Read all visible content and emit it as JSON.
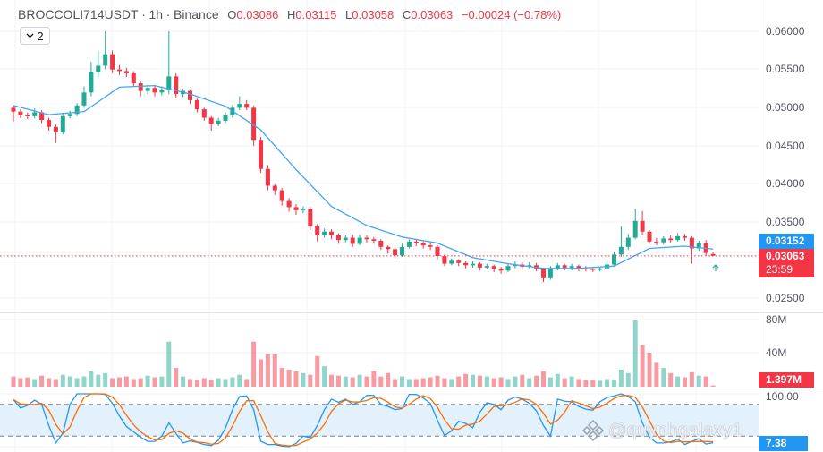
{
  "header": {
    "symbol": "BROCCOLI714USDT",
    "sep1": "·",
    "interval": "1h",
    "sep2": "·",
    "exchange": "Binance",
    "o_label": "O",
    "o_value": "0.03086",
    "h_label": "H",
    "h_value": "0.03115",
    "l_label": "L",
    "l_value": "0.03058",
    "c_label": "C",
    "c_value": "0.03063",
    "change": "−0.00024 (−0.78%)"
  },
  "indicators_toggle": {
    "icon": "chevron-down-icon",
    "count": "2"
  },
  "price_axis": {
    "ticks": [
      "0.06000",
      "0.05500",
      "0.05000",
      "0.04500",
      "0.04000",
      "0.03500",
      "0.02500"
    ],
    "ma_label": "0.03152",
    "last_price_label": "0.03063",
    "countdown": "23:59"
  },
  "volume_axis": {
    "ticks": [
      "80M",
      "40M"
    ],
    "last_label": "1.397M"
  },
  "stoch_axis": {
    "ticks": [
      "100.00"
    ],
    "last_label": "7.38"
  },
  "watermark": "@quynhgalaxy1",
  "colors": {
    "up": "#22ab94",
    "down": "#f23645",
    "ma": "#42a5f5",
    "k": "#2196f3",
    "d": "#ff6d00",
    "band": "#e3f1fd",
    "grid": "#f0f3fa"
  },
  "chart_data": [
    {
      "type": "candlestick",
      "title": "BROCCOLI714USDT · 1h · Binance",
      "ylim": [
        0.0245,
        0.06
      ],
      "grid": true,
      "open": [
        0.05,
        0.0495,
        0.049,
        0.0489,
        0.0494,
        0.0484,
        0.0475,
        0.0468,
        0.0489,
        0.0492,
        0.0503,
        0.052,
        0.0547,
        0.0555,
        0.057,
        0.055,
        0.0548,
        0.0545,
        0.0532,
        0.0522,
        0.0526,
        0.052,
        0.0523,
        0.0541,
        0.0518,
        0.0522,
        0.051,
        0.0498,
        0.0487,
        0.0479,
        0.0483,
        0.049,
        0.05,
        0.0505,
        0.05,
        0.0458,
        0.042,
        0.0398,
        0.0392,
        0.0378,
        0.037,
        0.0366,
        0.0368,
        0.0345,
        0.0333,
        0.0338,
        0.0333,
        0.0327,
        0.033,
        0.0322,
        0.033,
        0.0328,
        0.0326,
        0.0318,
        0.0315,
        0.0307,
        0.0318,
        0.0325,
        0.0323,
        0.032,
        0.0318,
        0.0306,
        0.0296,
        0.03,
        0.0297,
        0.0294,
        0.0296,
        0.0291,
        0.0293,
        0.0289,
        0.0287,
        0.0293,
        0.0295,
        0.0292,
        0.0294,
        0.0289,
        0.0277,
        0.029,
        0.0294,
        0.0291,
        0.0293,
        0.029,
        0.0289,
        0.0288,
        0.029,
        0.0295,
        0.0308,
        0.0318,
        0.033,
        0.0352,
        0.0338,
        0.0325,
        0.0324,
        0.0329,
        0.0327,
        0.0332,
        0.033,
        0.0316,
        0.0323,
        0.03086
      ],
      "high": [
        0.0503,
        0.0498,
        0.0494,
        0.0499,
        0.0497,
        0.0487,
        0.0478,
        0.0492,
        0.0496,
        0.0506,
        0.0528,
        0.056,
        0.0575,
        0.06,
        0.0575,
        0.0556,
        0.0552,
        0.0548,
        0.0534,
        0.053,
        0.053,
        0.0528,
        0.06,
        0.0545,
        0.0525,
        0.0524,
        0.0512,
        0.05,
        0.0489,
        0.0487,
        0.0494,
        0.0504,
        0.0515,
        0.051,
        0.0503,
        0.0462,
        0.0425,
        0.04,
        0.0395,
        0.0382,
        0.0374,
        0.0371,
        0.037,
        0.0348,
        0.0342,
        0.0341,
        0.0336,
        0.0333,
        0.0334,
        0.0334,
        0.0333,
        0.0331,
        0.0328,
        0.032,
        0.0318,
        0.0322,
        0.0328,
        0.0328,
        0.0325,
        0.0323,
        0.032,
        0.0308,
        0.0303,
        0.0302,
        0.0299,
        0.0299,
        0.0298,
        0.0296,
        0.0295,
        0.0292,
        0.0296,
        0.0299,
        0.0298,
        0.0298,
        0.0297,
        0.0291,
        0.0293,
        0.0297,
        0.0296,
        0.0296,
        0.0295,
        0.0293,
        0.0292,
        0.0292,
        0.0299,
        0.0312,
        0.0345,
        0.0335,
        0.0368,
        0.0365,
        0.034,
        0.033,
        0.0332,
        0.0333,
        0.0336,
        0.0335,
        0.0332,
        0.0326,
        0.0327,
        0.03115
      ],
      "low": [
        0.0482,
        0.0487,
        0.0485,
        0.0486,
        0.048,
        0.047,
        0.0454,
        0.0465,
        0.0486,
        0.0489,
        0.05,
        0.0515,
        0.054,
        0.055,
        0.0545,
        0.0543,
        0.054,
        0.0528,
        0.0515,
        0.0518,
        0.0515,
        0.0516,
        0.0518,
        0.0512,
        0.0514,
        0.0505,
        0.0494,
        0.0483,
        0.047,
        0.0476,
        0.048,
        0.0487,
        0.0497,
        0.0497,
        0.045,
        0.0415,
        0.0392,
        0.0386,
        0.0372,
        0.0364,
        0.036,
        0.0362,
        0.034,
        0.0325,
        0.033,
        0.0328,
        0.0322,
        0.0324,
        0.0318,
        0.032,
        0.0323,
        0.0322,
        0.0314,
        0.0309,
        0.0303,
        0.0305,
        0.0316,
        0.0319,
        0.0316,
        0.0314,
        0.0302,
        0.0293,
        0.0294,
        0.0293,
        0.029,
        0.0291,
        0.0287,
        0.0289,
        0.0285,
        0.0283,
        0.0285,
        0.029,
        0.0288,
        0.029,
        0.0286,
        0.0272,
        0.0275,
        0.0287,
        0.0287,
        0.0287,
        0.0286,
        0.0286,
        0.0285,
        0.0286,
        0.0288,
        0.0293,
        0.0305,
        0.0314,
        0.0328,
        0.0334,
        0.0322,
        0.032,
        0.0321,
        0.0323,
        0.0325,
        0.0326,
        0.0296,
        0.0313,
        0.0306,
        0.03058
      ],
      "close": [
        0.0495,
        0.049,
        0.0489,
        0.0494,
        0.0484,
        0.0475,
        0.0468,
        0.0489,
        0.0492,
        0.0503,
        0.052,
        0.0547,
        0.0555,
        0.057,
        0.055,
        0.0548,
        0.0545,
        0.0532,
        0.0522,
        0.0526,
        0.052,
        0.0523,
        0.0541,
        0.0518,
        0.0522,
        0.051,
        0.0498,
        0.0487,
        0.0479,
        0.0483,
        0.049,
        0.05,
        0.0505,
        0.05,
        0.0458,
        0.042,
        0.0398,
        0.0392,
        0.0378,
        0.037,
        0.0366,
        0.0368,
        0.0345,
        0.0333,
        0.0338,
        0.0333,
        0.0327,
        0.033,
        0.0322,
        0.033,
        0.0328,
        0.0326,
        0.0318,
        0.0315,
        0.0307,
        0.0318,
        0.0325,
        0.0323,
        0.032,
        0.0318,
        0.0306,
        0.0296,
        0.03,
        0.0297,
        0.0294,
        0.0296,
        0.0291,
        0.0293,
        0.0289,
        0.0287,
        0.0293,
        0.0295,
        0.0292,
        0.0294,
        0.0289,
        0.0277,
        0.029,
        0.0294,
        0.0291,
        0.0293,
        0.029,
        0.0289,
        0.0288,
        0.029,
        0.0295,
        0.0308,
        0.0318,
        0.033,
        0.0352,
        0.0338,
        0.0325,
        0.0324,
        0.0329,
        0.0327,
        0.0332,
        0.033,
        0.0316,
        0.0323,
        0.031,
        0.03063
      ],
      "ma_every_5": [
        0.0503,
        0.0491,
        0.0495,
        0.0527,
        0.0529,
        0.0518,
        0.0502,
        0.0471,
        0.0419,
        0.0371,
        0.0346,
        0.0331,
        0.0323,
        0.0304,
        0.0296,
        0.029,
        0.029,
        0.0293,
        0.0316,
        0.0319,
        0.03152
      ],
      "last_price": 0.03063
    },
    {
      "type": "bar",
      "name": "volume",
      "unit": "M",
      "ylim": [
        0,
        80
      ],
      "values": [
        12,
        10,
        11,
        9,
        13,
        10,
        9,
        14,
        12,
        10,
        12,
        18,
        14,
        16,
        10,
        11,
        12,
        9,
        10,
        13,
        11,
        12,
        53,
        22,
        12,
        9,
        8,
        10,
        8,
        10,
        9,
        11,
        14,
        9,
        53,
        32,
        38,
        38,
        22,
        20,
        18,
        16,
        14,
        36,
        24,
        14,
        13,
        12,
        11,
        14,
        12,
        19,
        12,
        16,
        9,
        12,
        9,
        9,
        10,
        11,
        13,
        10,
        9,
        12,
        15,
        14,
        13,
        12,
        10,
        11,
        9,
        12,
        14,
        10,
        13,
        18,
        11,
        15,
        10,
        12,
        9,
        8,
        8,
        7,
        9,
        8,
        20,
        16,
        78,
        49,
        40,
        28,
        22,
        16,
        12,
        11,
        17,
        13,
        12,
        1.397
      ]
    },
    {
      "type": "line",
      "name": "stoch-rsi",
      "ylim": [
        0,
        100
      ],
      "bands": [
        20,
        80
      ],
      "k": [
        89,
        73,
        78,
        88,
        80,
        40,
        7,
        25,
        80,
        100,
        100,
        100,
        100,
        99,
        82,
        58,
        38,
        28,
        18,
        10,
        10,
        20,
        45,
        25,
        7,
        11,
        8,
        4,
        2,
        12,
        35,
        70,
        95,
        96,
        70,
        10,
        4,
        4,
        1,
        0,
        6,
        20,
        17,
        40,
        70,
        90,
        84,
        90,
        80,
        85,
        97,
        97,
        80,
        76,
        70,
        72,
        99,
        99,
        92,
        82,
        50,
        21,
        30,
        48,
        44,
        36,
        65,
        83,
        80,
        70,
        88,
        94,
        90,
        82,
        68,
        40,
        20,
        90,
        86,
        85,
        76,
        71,
        69,
        85,
        93,
        96,
        100,
        95,
        85,
        45,
        18,
        7,
        7,
        9,
        14,
        4,
        10,
        15,
        5,
        7.38
      ]
    }
  ]
}
